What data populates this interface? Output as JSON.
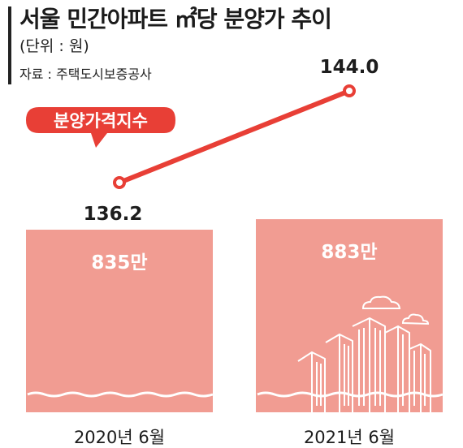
{
  "header": {
    "title": "서울 민간아파트 ㎡당 분양가 추이",
    "unit": "(단위 : 원)",
    "source": "자료 : 주택도시보증공사"
  },
  "colors": {
    "bar": "#f19c92",
    "line": "#e83f36",
    "text": "#1d1d1d",
    "wave": "#ffffff"
  },
  "chart_data": {
    "type": "bar",
    "categories": [
      "2020년 6월",
      "2021년 6월"
    ],
    "bar_values": [
      8350000,
      8830000
    ],
    "bar_labels": [
      "835만",
      "883만"
    ],
    "line_series": {
      "name": "분양가격지수",
      "values": [
        136.2,
        144.0
      ],
      "labels": [
        "136.2",
        "144.0"
      ]
    },
    "title": "서울 민간아파트 ㎡당 분양가 추이",
    "unit": "원",
    "legend": "분양가격지수"
  }
}
